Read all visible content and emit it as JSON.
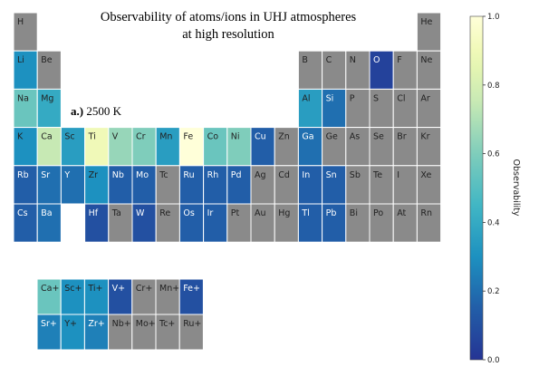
{
  "chart_data": {
    "type": "heatmap",
    "title_lines": [
      "Observability of atoms/ions in UHJ atmospheres",
      "at high resolution"
    ],
    "panel_label": "a.)",
    "panel_text": "2500 K",
    "colorbar": {
      "label": "Observability",
      "range": [
        0.0,
        1.0
      ],
      "ticks": [
        0.0,
        0.2,
        0.4,
        0.6,
        0.8,
        1.0
      ],
      "tick_labels": [
        "0.0",
        "0.2",
        "0.4",
        "0.6",
        "0.8",
        "1.0"
      ]
    },
    "elements": [
      {
        "symbol": "H",
        "row": 0,
        "col": 0,
        "value": null
      },
      {
        "symbol": "He",
        "row": 0,
        "col": 17,
        "value": null
      },
      {
        "symbol": "Li",
        "row": 1,
        "col": 0,
        "value": 0.3
      },
      {
        "symbol": "Be",
        "row": 1,
        "col": 1,
        "value": null
      },
      {
        "symbol": "B",
        "row": 1,
        "col": 12,
        "value": null
      },
      {
        "symbol": "C",
        "row": 1,
        "col": 13,
        "value": null
      },
      {
        "symbol": "N",
        "row": 1,
        "col": 14,
        "value": null
      },
      {
        "symbol": "O",
        "row": 1,
        "col": 15,
        "value": 0.05
      },
      {
        "symbol": "F",
        "row": 1,
        "col": 16,
        "value": null
      },
      {
        "symbol": "Ne",
        "row": 1,
        "col": 17,
        "value": null
      },
      {
        "symbol": "Na",
        "row": 2,
        "col": 0,
        "value": 0.55
      },
      {
        "symbol": "Mg",
        "row": 2,
        "col": 1,
        "value": 0.4
      },
      {
        "symbol": "Al",
        "row": 2,
        "col": 12,
        "value": 0.35
      },
      {
        "symbol": "Si",
        "row": 2,
        "col": 13,
        "value": 0.2
      },
      {
        "symbol": "P",
        "row": 2,
        "col": 14,
        "value": null
      },
      {
        "symbol": "S",
        "row": 2,
        "col": 15,
        "value": null
      },
      {
        "symbol": "Cl",
        "row": 2,
        "col": 16,
        "value": null
      },
      {
        "symbol": "Ar",
        "row": 2,
        "col": 17,
        "value": null
      },
      {
        "symbol": "K",
        "row": 3,
        "col": 0,
        "value": 0.3
      },
      {
        "symbol": "Ca",
        "row": 3,
        "col": 1,
        "value": 0.75
      },
      {
        "symbol": "Sc",
        "row": 3,
        "col": 2,
        "value": 0.35
      },
      {
        "symbol": "Ti",
        "row": 3,
        "col": 3,
        "value": 0.9
      },
      {
        "symbol": "V",
        "row": 3,
        "col": 4,
        "value": 0.65
      },
      {
        "symbol": "Cr",
        "row": 3,
        "col": 5,
        "value": 0.6
      },
      {
        "symbol": "Mn",
        "row": 3,
        "col": 6,
        "value": 0.35
      },
      {
        "symbol": "Fe",
        "row": 3,
        "col": 7,
        "value": 1.0
      },
      {
        "symbol": "Co",
        "row": 3,
        "col": 8,
        "value": 0.55
      },
      {
        "symbol": "Ni",
        "row": 3,
        "col": 9,
        "value": 0.6
      },
      {
        "symbol": "Cu",
        "row": 3,
        "col": 10,
        "value": 0.15
      },
      {
        "symbol": "Zn",
        "row": 3,
        "col": 11,
        "value": null
      },
      {
        "symbol": "Ga",
        "row": 3,
        "col": 12,
        "value": 0.2
      },
      {
        "symbol": "Ge",
        "row": 3,
        "col": 13,
        "value": null
      },
      {
        "symbol": "As",
        "row": 3,
        "col": 14,
        "value": null
      },
      {
        "symbol": "Se",
        "row": 3,
        "col": 15,
        "value": null
      },
      {
        "symbol": "Br",
        "row": 3,
        "col": 16,
        "value": null
      },
      {
        "symbol": "Kr",
        "row": 3,
        "col": 17,
        "value": null
      },
      {
        "symbol": "Rb",
        "row": 4,
        "col": 0,
        "value": 0.15
      },
      {
        "symbol": "Sr",
        "row": 4,
        "col": 1,
        "value": 0.2
      },
      {
        "symbol": "Y",
        "row": 4,
        "col": 2,
        "value": 0.2
      },
      {
        "symbol": "Zr",
        "row": 4,
        "col": 3,
        "value": 0.3
      },
      {
        "symbol": "Nb",
        "row": 4,
        "col": 4,
        "value": 0.15
      },
      {
        "symbol": "Mo",
        "row": 4,
        "col": 5,
        "value": 0.15
      },
      {
        "symbol": "Tc",
        "row": 4,
        "col": 6,
        "value": null
      },
      {
        "symbol": "Ru",
        "row": 4,
        "col": 7,
        "value": 0.15
      },
      {
        "symbol": "Rh",
        "row": 4,
        "col": 8,
        "value": 0.15
      },
      {
        "symbol": "Pd",
        "row": 4,
        "col": 9,
        "value": 0.15
      },
      {
        "symbol": "Ag",
        "row": 4,
        "col": 10,
        "value": null
      },
      {
        "symbol": "Cd",
        "row": 4,
        "col": 11,
        "value": null
      },
      {
        "symbol": "In",
        "row": 4,
        "col": 12,
        "value": 0.15
      },
      {
        "symbol": "Sn",
        "row": 4,
        "col": 13,
        "value": 0.15
      },
      {
        "symbol": "Sb",
        "row": 4,
        "col": 14,
        "value": null
      },
      {
        "symbol": "Te",
        "row": 4,
        "col": 15,
        "value": null
      },
      {
        "symbol": "I",
        "row": 4,
        "col": 16,
        "value": null
      },
      {
        "symbol": "Xe",
        "row": 4,
        "col": 17,
        "value": null
      },
      {
        "symbol": "Cs",
        "row": 5,
        "col": 0,
        "value": 0.15
      },
      {
        "symbol": "Ba",
        "row": 5,
        "col": 1,
        "value": 0.2
      },
      {
        "symbol": "Hf",
        "row": 5,
        "col": 3,
        "value": 0.1
      },
      {
        "symbol": "Ta",
        "row": 5,
        "col": 4,
        "value": null
      },
      {
        "symbol": "W",
        "row": 5,
        "col": 5,
        "value": 0.1
      },
      {
        "symbol": "Re",
        "row": 5,
        "col": 6,
        "value": null
      },
      {
        "symbol": "Os",
        "row": 5,
        "col": 7,
        "value": 0.15
      },
      {
        "symbol": "Ir",
        "row": 5,
        "col": 8,
        "value": 0.15
      },
      {
        "symbol": "Pt",
        "row": 5,
        "col": 9,
        "value": null
      },
      {
        "symbol": "Au",
        "row": 5,
        "col": 10,
        "value": null
      },
      {
        "symbol": "Hg",
        "row": 5,
        "col": 11,
        "value": null
      },
      {
        "symbol": "Tl",
        "row": 5,
        "col": 12,
        "value": 0.15
      },
      {
        "symbol": "Pb",
        "row": 5,
        "col": 13,
        "value": 0.15
      },
      {
        "symbol": "Bi",
        "row": 5,
        "col": 14,
        "value": null
      },
      {
        "symbol": "Po",
        "row": 5,
        "col": 15,
        "value": null
      },
      {
        "symbol": "At",
        "row": 5,
        "col": 16,
        "value": null
      },
      {
        "symbol": "Rn",
        "row": 5,
        "col": 17,
        "value": null
      }
    ],
    "ions": [
      {
        "symbol": "Ca+",
        "row": 0,
        "col": 0,
        "value": 0.55
      },
      {
        "symbol": "Sc+",
        "row": 0,
        "col": 1,
        "value": 0.3
      },
      {
        "symbol": "Ti+",
        "row": 0,
        "col": 2,
        "value": 0.3
      },
      {
        "symbol": "V+",
        "row": 0,
        "col": 3,
        "value": 0.1
      },
      {
        "symbol": "Cr+",
        "row": 0,
        "col": 4,
        "value": null
      },
      {
        "symbol": "Mn+",
        "row": 0,
        "col": 5,
        "value": null
      },
      {
        "symbol": "Fe+",
        "row": 0,
        "col": 6,
        "value": 0.1
      },
      {
        "symbol": "Sr+",
        "row": 1,
        "col": 0,
        "value": 0.25
      },
      {
        "symbol": "Y+",
        "row": 1,
        "col": 1,
        "value": 0.3
      },
      {
        "symbol": "Zr+",
        "row": 1,
        "col": 2,
        "value": 0.25
      },
      {
        "symbol": "Nb+",
        "row": 1,
        "col": 3,
        "value": null
      },
      {
        "symbol": "Mo+",
        "row": 1,
        "col": 4,
        "value": null
      },
      {
        "symbol": "Tc+",
        "row": 1,
        "col": 5,
        "value": null
      },
      {
        "symbol": "Ru+",
        "row": 1,
        "col": 6,
        "value": null
      }
    ]
  }
}
